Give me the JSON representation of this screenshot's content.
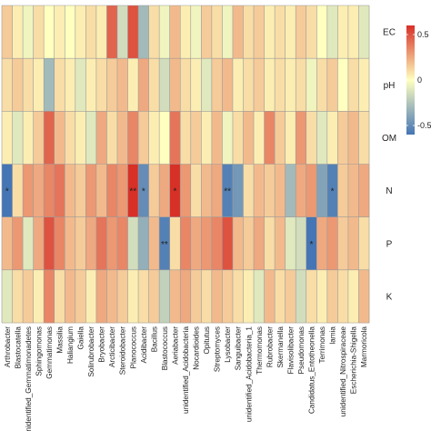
{
  "chart_data": {
    "type": "heatmap",
    "rows": [
      "EC",
      "pH",
      "OM",
      "N",
      "P",
      "K"
    ],
    "columns": [
      "Arthrobacter",
      "Blastocatella",
      "unidentified_Gemmatimonadetes",
      "Sphingomonas",
      "Gemmatimonas",
      "Massilia",
      "Haliangium",
      "Gaiella",
      "Solirubrobacter",
      "Bryobacter",
      "Arcticibacter",
      "Steroidobacter",
      "Planococcus",
      "Acidibacter",
      "Bacillus",
      "Blastococcus",
      "Aeriabacter",
      "unidentified_Acidobacteria",
      "Nocardioides",
      "Opitutus",
      "Streptomyces",
      "Lysobacter",
      "Sanguibacter",
      "unidentified_Acidobacteria_1",
      "Thermomonas",
      "Rubrobacter",
      "Skermanella",
      "Flavisolibacter",
      "Pseudomonas",
      "Candidatus_Entotheonella",
      "Terrimonas",
      "lamia",
      "unidentified_Nitrospiraceae",
      "Escherichia-Shigella",
      "Marmoricola"
    ],
    "values": [
      [
        0.15,
        0.05,
        -0.05,
        0.1,
        0.0,
        0.05,
        0.0,
        0.05,
        0.1,
        0.05,
        0.45,
        -0.15,
        0.5,
        -0.3,
        0.1,
        -0.05,
        0.2,
        0.05,
        -0.05,
        0.15,
        0.1,
        -0.05,
        0.2,
        0.1,
        0.15,
        0.05,
        0.1,
        0.05,
        0.15,
        0.1,
        0.0,
        -0.1,
        0.05,
        0.05,
        -0.1
      ],
      [
        0.1,
        0.15,
        0.1,
        0.05,
        -0.3,
        0.1,
        0.05,
        -0.1,
        0.05,
        0.1,
        0.15,
        0.2,
        0.05,
        0.25,
        0.1,
        -0.15,
        0.2,
        0.1,
        0.05,
        -0.1,
        0.15,
        0.2,
        0.05,
        0.1,
        0.15,
        0.05,
        0.1,
        0.05,
        0.1,
        -0.05,
        0.1,
        0.15,
        0.0,
        0.1,
        0.05
      ],
      [
        0.05,
        -0.1,
        0.05,
        0.15,
        0.45,
        0.2,
        0.1,
        0.05,
        -0.1,
        0.25,
        0.1,
        0.2,
        0.35,
        0.15,
        0.05,
        0.0,
        0.4,
        0.1,
        0.15,
        0.05,
        0.2,
        -0.05,
        0.1,
        0.2,
        0.05,
        0.35,
        0.15,
        0.05,
        0.3,
        0.1,
        -0.1,
        0.05,
        0.15,
        0.2,
        0.1
      ],
      [
        -0.6,
        0.1,
        0.3,
        0.25,
        0.35,
        0.4,
        0.2,
        0.15,
        0.3,
        0.2,
        0.35,
        0.3,
        0.7,
        -0.5,
        0.15,
        0.25,
        0.65,
        0.3,
        0.1,
        0.2,
        0.25,
        -0.55,
        -0.45,
        0.1,
        0.2,
        0.15,
        0.2,
        -0.3,
        0.25,
        0.3,
        -0.4,
        -0.55,
        0.15,
        0.2,
        0.25
      ],
      [
        0.2,
        0.3,
        -0.1,
        0.25,
        0.5,
        0.35,
        0.2,
        0.15,
        0.25,
        0.4,
        0.3,
        0.35,
        -0.15,
        -0.35,
        0.2,
        -0.55,
        0.1,
        0.35,
        0.25,
        0.3,
        0.35,
        0.5,
        0.2,
        0.15,
        0.25,
        0.1,
        0.2,
        -0.1,
        -0.15,
        -0.6,
        0.25,
        0.3,
        0.15,
        0.2,
        0.1
      ],
      [
        -0.1,
        0.1,
        0.15,
        0.05,
        0.35,
        0.1,
        0.2,
        0.15,
        0.05,
        0.25,
        0.2,
        0.15,
        0.05,
        0.1,
        0.15,
        -0.2,
        0.2,
        0.25,
        0.15,
        0.1,
        0.2,
        0.15,
        0.1,
        0.05,
        -0.1,
        0.2,
        0.1,
        0.15,
        -0.15,
        0.1,
        0.05,
        0.15,
        0.1,
        0.05,
        0.2
      ]
    ],
    "significance": [
      {
        "row": "N",
        "column": "Arthrobacter",
        "label": "*"
      },
      {
        "row": "N",
        "column": "Planococcus",
        "label": "**"
      },
      {
        "row": "N",
        "column": "Acidibacter",
        "label": "*"
      },
      {
        "row": "N",
        "column": "Aeriabacter",
        "label": "*"
      },
      {
        "row": "N",
        "column": "Lysobacter",
        "label": "**"
      },
      {
        "row": "N",
        "column": "lamia",
        "label": "*"
      },
      {
        "row": "P",
        "column": "Blastococcus",
        "label": "**"
      },
      {
        "row": "P",
        "column": "Candidatus_Entotheonella",
        "label": "*"
      }
    ],
    "colorbar": {
      "range": [
        -0.6,
        0.6
      ],
      "ticks": [
        0.5,
        0,
        -0.5
      ],
      "tick_labels": [
        "0.5",
        "0",
        "-0.5"
      ],
      "colors": [
        "#4575b4",
        "#ffffbf",
        "#d73027"
      ]
    },
    "grid": true
  }
}
